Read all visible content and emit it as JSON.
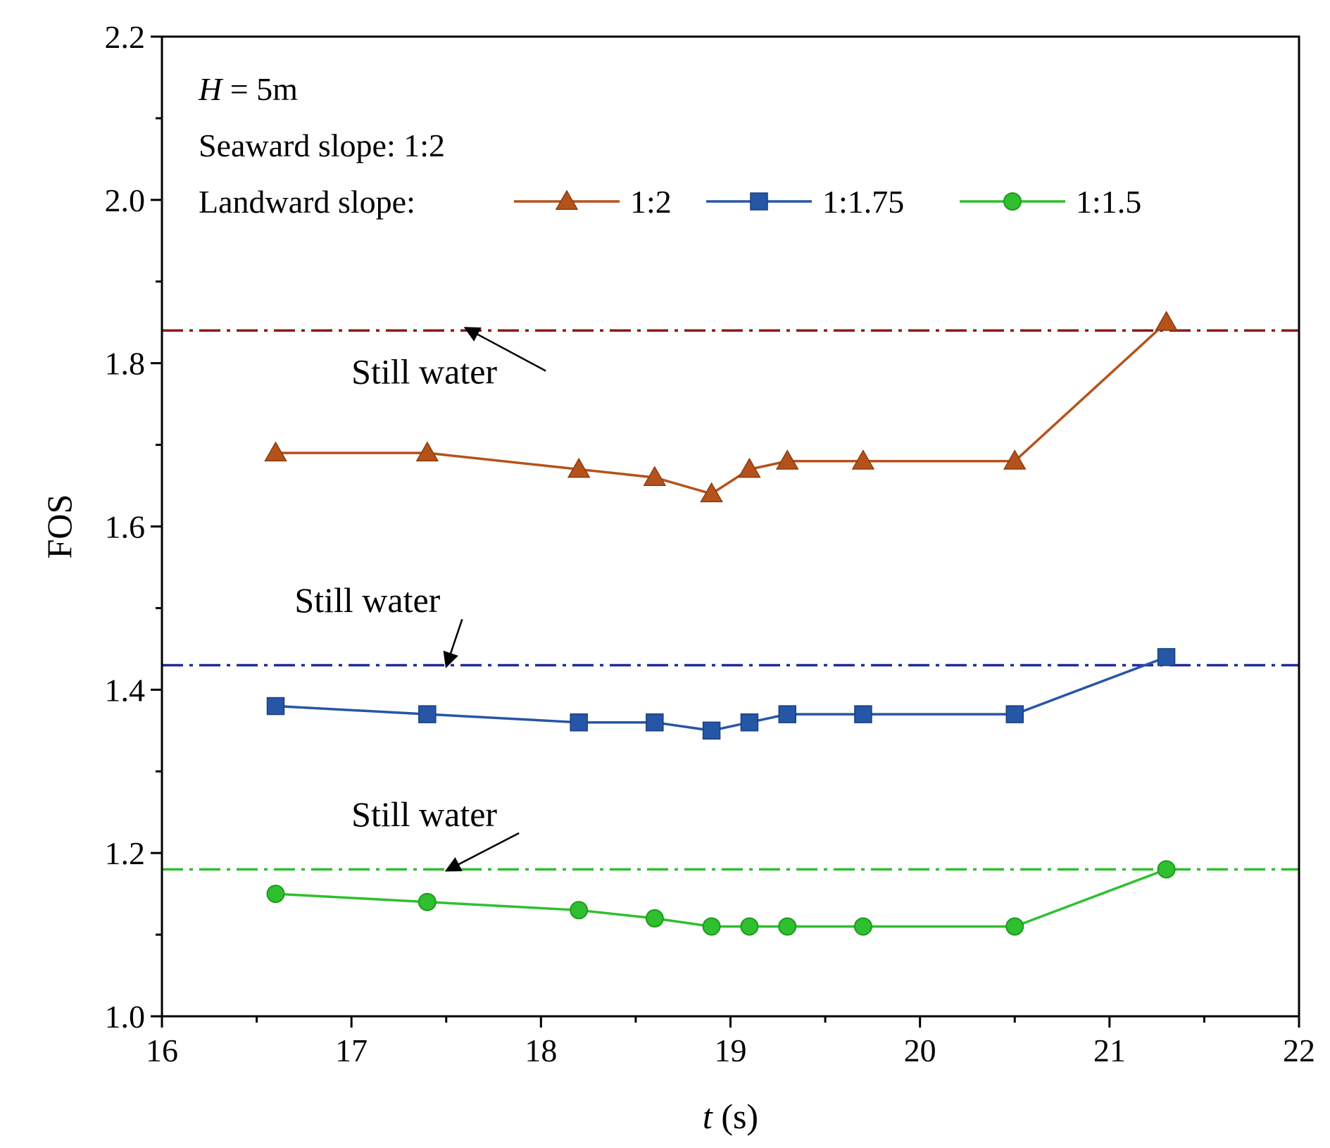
{
  "chart_data": {
    "type": "line",
    "xlabel_var": "t",
    "xlabel_unit": " (s)",
    "ylabel": "FOS",
    "xlim": [
      16,
      22
    ],
    "ylim": [
      1.0,
      2.2
    ],
    "xticks": [
      16,
      17,
      18,
      19,
      20,
      21,
      22
    ],
    "yticks": [
      1.0,
      1.2,
      1.4,
      1.6,
      1.8,
      2.0,
      2.2
    ],
    "xtick_labels": [
      "16",
      "17",
      "18",
      "19",
      "20",
      "21",
      "22"
    ],
    "ytick_labels": [
      "1.0",
      "1.2",
      "1.4",
      "1.6",
      "1.8",
      "2.0",
      "2.2"
    ],
    "annotations": {
      "h_var": "H",
      "h_value": " = 5m",
      "seaward": "Seaward slope: 1:2",
      "landward": "Landward slope:"
    },
    "series": [
      {
        "name": "1:2",
        "marker": "triangle",
        "color": "#B5521B",
        "x": [
          16.6,
          17.4,
          18.2,
          18.6,
          18.9,
          19.1,
          19.3,
          19.7,
          20.5,
          21.3
        ],
        "values": [
          1.69,
          1.69,
          1.67,
          1.66,
          1.64,
          1.67,
          1.68,
          1.68,
          1.68,
          1.85
        ]
      },
      {
        "name": "1:1.75",
        "marker": "square",
        "color": "#2656A6",
        "x": [
          16.6,
          17.4,
          18.2,
          18.6,
          18.9,
          19.1,
          19.3,
          19.7,
          20.5,
          21.3
        ],
        "values": [
          1.38,
          1.37,
          1.36,
          1.36,
          1.35,
          1.36,
          1.37,
          1.37,
          1.37,
          1.44
        ]
      },
      {
        "name": "1:1.5",
        "marker": "circle",
        "color": "#2EC02E",
        "x": [
          16.6,
          17.4,
          18.2,
          18.6,
          18.9,
          19.1,
          19.3,
          19.7,
          20.5,
          21.3
        ],
        "values": [
          1.15,
          1.14,
          1.13,
          1.12,
          1.11,
          1.11,
          1.11,
          1.11,
          1.11,
          1.18
        ]
      }
    ],
    "reference_lines": [
      {
        "label": "Still water",
        "value": 1.84,
        "color": "#8B1A1A",
        "style": "dash-dot",
        "label_at": [
          17.0,
          1.775
        ],
        "arrow_tip": [
          17.6,
          1.84
        ]
      },
      {
        "label": "Still water",
        "value": 1.43,
        "color": "#1F2A9C",
        "style": "dash-dot",
        "label_at": [
          16.7,
          1.495
        ],
        "arrow_tip": [
          17.5,
          1.43
        ]
      },
      {
        "label": "Still water",
        "value": 1.18,
        "color": "#2EC02E",
        "style": "dash-dot",
        "label_at": [
          17.0,
          1.233
        ],
        "arrow_tip": [
          17.5,
          1.18
        ]
      }
    ]
  }
}
